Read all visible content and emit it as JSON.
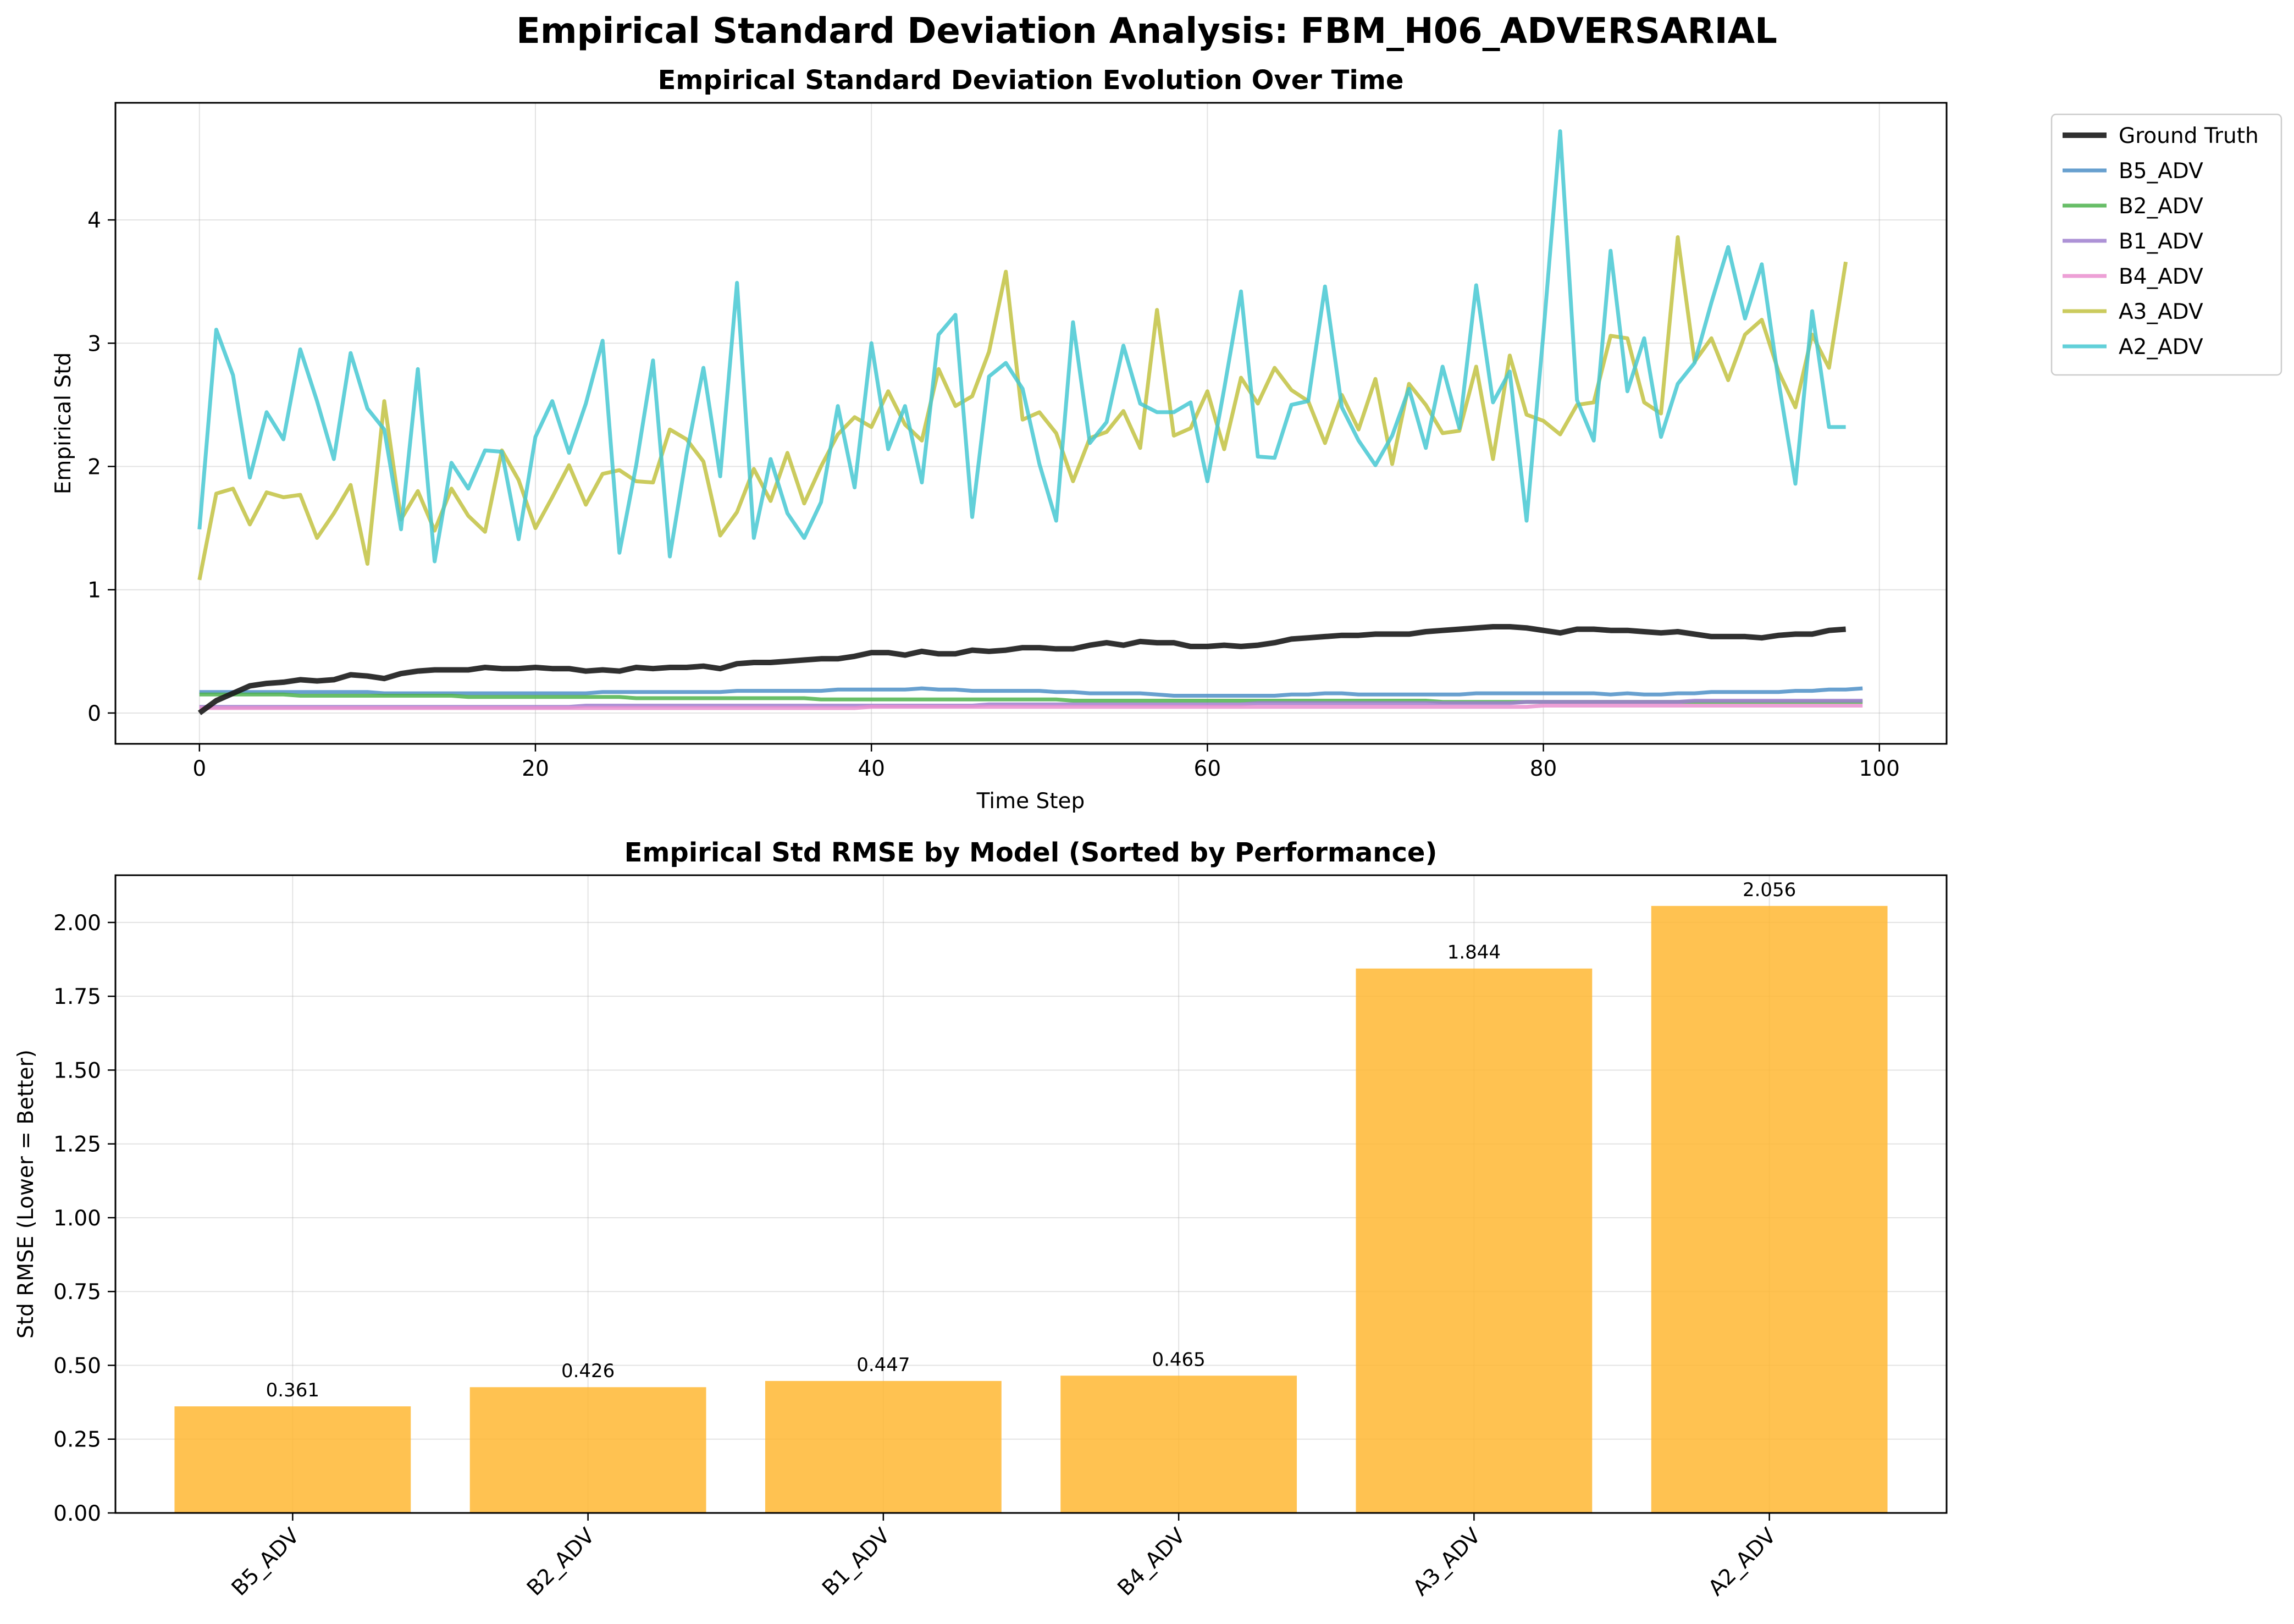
{
  "suptitle": "Empirical Standard Deviation Analysis: FBM_H06_ADVERSARIAL",
  "chart_data": [
    {
      "type": "line",
      "title": "Empirical Standard Deviation Evolution Over Time",
      "xlabel": "Time Step",
      "ylabel": "Empirical Std",
      "xlim": [
        -5,
        104
      ],
      "ylim": [
        -0.25,
        4.95
      ],
      "xticks": [
        0,
        20,
        40,
        60,
        80,
        100
      ],
      "yticks": [
        0,
        1,
        2,
        3,
        4
      ],
      "grid": true,
      "legend_position": "outside-right-top",
      "series": [
        {
          "name": "Ground Truth",
          "color": "#1a1a1a",
          "values": [
            0.0,
            0.1,
            0.16,
            0.22,
            0.24,
            0.25,
            0.27,
            0.26,
            0.27,
            0.31,
            0.3,
            0.28,
            0.32,
            0.34,
            0.35,
            0.35,
            0.35,
            0.37,
            0.36,
            0.36,
            0.37,
            0.36,
            0.36,
            0.34,
            0.35,
            0.34,
            0.37,
            0.36,
            0.37,
            0.37,
            0.38,
            0.36,
            0.4,
            0.41,
            0.41,
            0.42,
            0.43,
            0.44,
            0.44,
            0.46,
            0.49,
            0.49,
            0.47,
            0.5,
            0.48,
            0.48,
            0.51,
            0.5,
            0.51,
            0.53,
            0.53,
            0.52,
            0.52,
            0.55,
            0.57,
            0.55,
            0.58,
            0.57,
            0.57,
            0.54,
            0.54,
            0.55,
            0.54,
            0.55,
            0.57,
            0.6,
            0.61,
            0.62,
            0.63,
            0.63,
            0.64,
            0.64,
            0.64,
            0.66,
            0.67,
            0.68,
            0.69,
            0.7,
            0.7,
            0.69,
            0.67,
            0.65,
            0.68,
            0.68,
            0.67,
            0.67,
            0.66,
            0.65,
            0.66,
            0.64,
            0.62,
            0.62,
            0.62,
            0.61,
            0.63,
            0.64,
            0.64,
            0.67,
            0.68
          ]
        },
        {
          "name": "B5_ADV",
          "color": "#4e8fc7",
          "values": [
            0.17,
            0.17,
            0.17,
            0.17,
            0.17,
            0.17,
            0.17,
            0.17,
            0.17,
            0.17,
            0.17,
            0.16,
            0.16,
            0.16,
            0.16,
            0.16,
            0.16,
            0.16,
            0.16,
            0.16,
            0.16,
            0.16,
            0.16,
            0.16,
            0.17,
            0.17,
            0.17,
            0.17,
            0.17,
            0.17,
            0.17,
            0.17,
            0.18,
            0.18,
            0.18,
            0.18,
            0.18,
            0.18,
            0.19,
            0.19,
            0.19,
            0.19,
            0.19,
            0.2,
            0.19,
            0.19,
            0.18,
            0.18,
            0.18,
            0.18,
            0.18,
            0.17,
            0.17,
            0.16,
            0.16,
            0.16,
            0.16,
            0.15,
            0.14,
            0.14,
            0.14,
            0.14,
            0.14,
            0.14,
            0.14,
            0.15,
            0.15,
            0.16,
            0.16,
            0.15,
            0.15,
            0.15,
            0.15,
            0.15,
            0.15,
            0.15,
            0.16,
            0.16,
            0.16,
            0.16,
            0.16,
            0.16,
            0.16,
            0.16,
            0.15,
            0.16,
            0.15,
            0.15,
            0.16,
            0.16,
            0.17,
            0.17,
            0.17,
            0.17,
            0.17,
            0.18,
            0.18,
            0.19,
            0.19,
            0.2
          ]
        },
        {
          "name": "B2_ADV",
          "color": "#4db34d",
          "values": [
            0.15,
            0.15,
            0.15,
            0.15,
            0.15,
            0.15,
            0.14,
            0.14,
            0.14,
            0.14,
            0.14,
            0.14,
            0.14,
            0.14,
            0.14,
            0.14,
            0.13,
            0.13,
            0.13,
            0.13,
            0.13,
            0.13,
            0.13,
            0.13,
            0.13,
            0.13,
            0.12,
            0.12,
            0.12,
            0.12,
            0.12,
            0.12,
            0.12,
            0.12,
            0.12,
            0.12,
            0.12,
            0.11,
            0.11,
            0.11,
            0.11,
            0.11,
            0.11,
            0.11,
            0.11,
            0.11,
            0.11,
            0.11,
            0.11,
            0.11,
            0.11,
            0.11,
            0.1,
            0.1,
            0.1,
            0.1,
            0.1,
            0.1,
            0.1,
            0.1,
            0.1,
            0.1,
            0.1,
            0.1,
            0.1,
            0.1,
            0.1,
            0.1,
            0.1,
            0.1,
            0.1,
            0.1,
            0.1,
            0.1,
            0.09,
            0.09,
            0.09,
            0.09,
            0.09,
            0.09,
            0.09,
            0.09,
            0.09,
            0.09,
            0.09,
            0.09,
            0.09,
            0.09,
            0.09,
            0.09,
            0.09,
            0.09,
            0.09,
            0.09,
            0.09,
            0.09,
            0.09,
            0.09,
            0.09,
            0.09
          ]
        },
        {
          "name": "B1_ADV",
          "color": "#9f7fcf",
          "values": [
            0.05,
            0.05,
            0.05,
            0.05,
            0.05,
            0.05,
            0.05,
            0.05,
            0.05,
            0.05,
            0.05,
            0.05,
            0.05,
            0.05,
            0.05,
            0.05,
            0.05,
            0.05,
            0.05,
            0.05,
            0.05,
            0.05,
            0.05,
            0.06,
            0.06,
            0.06,
            0.06,
            0.06,
            0.06,
            0.06,
            0.06,
            0.06,
            0.06,
            0.06,
            0.06,
            0.06,
            0.06,
            0.06,
            0.06,
            0.06,
            0.06,
            0.06,
            0.06,
            0.06,
            0.06,
            0.06,
            0.06,
            0.07,
            0.07,
            0.07,
            0.07,
            0.07,
            0.07,
            0.07,
            0.07,
            0.07,
            0.07,
            0.07,
            0.07,
            0.07,
            0.07,
            0.07,
            0.07,
            0.08,
            0.08,
            0.08,
            0.08,
            0.08,
            0.08,
            0.08,
            0.08,
            0.08,
            0.08,
            0.08,
            0.08,
            0.08,
            0.08,
            0.08,
            0.08,
            0.09,
            0.09,
            0.09,
            0.09,
            0.09,
            0.09,
            0.09,
            0.09,
            0.09,
            0.09,
            0.1,
            0.1,
            0.1,
            0.1,
            0.1,
            0.1,
            0.1,
            0.1,
            0.1,
            0.1,
            0.1
          ]
        },
        {
          "name": "B4_ADV",
          "color": "#ea8fcf",
          "values": [
            0.04,
            0.04,
            0.04,
            0.04,
            0.04,
            0.04,
            0.04,
            0.04,
            0.04,
            0.04,
            0.04,
            0.04,
            0.04,
            0.04,
            0.04,
            0.04,
            0.04,
            0.04,
            0.04,
            0.04,
            0.04,
            0.04,
            0.04,
            0.04,
            0.04,
            0.04,
            0.04,
            0.04,
            0.04,
            0.04,
            0.04,
            0.04,
            0.04,
            0.04,
            0.04,
            0.04,
            0.04,
            0.04,
            0.04,
            0.04,
            0.05,
            0.05,
            0.05,
            0.05,
            0.05,
            0.05,
            0.05,
            0.05,
            0.05,
            0.05,
            0.05,
            0.05,
            0.05,
            0.05,
            0.05,
            0.05,
            0.05,
            0.05,
            0.05,
            0.05,
            0.05,
            0.05,
            0.05,
            0.05,
            0.05,
            0.05,
            0.05,
            0.05,
            0.05,
            0.05,
            0.05,
            0.05,
            0.05,
            0.05,
            0.05,
            0.05,
            0.05,
            0.05,
            0.05,
            0.05,
            0.06,
            0.06,
            0.06,
            0.06,
            0.06,
            0.06,
            0.06,
            0.06,
            0.06,
            0.06,
            0.06,
            0.06,
            0.06,
            0.06,
            0.06,
            0.06,
            0.06,
            0.06,
            0.06,
            0.06
          ]
        },
        {
          "name": "A3_ADV",
          "color": "#c2c242",
          "values": [
            1.08,
            1.78,
            1.82,
            1.53,
            1.79,
            1.75,
            1.77,
            1.42,
            1.62,
            1.85,
            1.21,
            2.53,
            1.57,
            1.8,
            1.48,
            1.82,
            1.6,
            1.47,
            2.13,
            1.89,
            1.5,
            1.75,
            2.01,
            1.69,
            1.94,
            1.97,
            1.88,
            1.87,
            2.3,
            2.22,
            2.04,
            1.44,
            1.63,
            1.98,
            1.72,
            2.11,
            1.7,
            2.0,
            2.26,
            2.4,
            2.32,
            2.61,
            2.34,
            2.21,
            2.79,
            2.49,
            2.57,
            2.93,
            3.58,
            2.38,
            2.44,
            2.27,
            1.88,
            2.23,
            2.28,
            2.45,
            2.15,
            3.27,
            2.25,
            2.31,
            2.61,
            2.14,
            2.72,
            2.51,
            2.8,
            2.62,
            2.53,
            2.19,
            2.58,
            2.3,
            2.71,
            2.02,
            2.67,
            2.5,
            2.27,
            2.29,
            2.81,
            2.06,
            2.9,
            2.42,
            2.37,
            2.26,
            2.5,
            2.52,
            3.06,
            3.04,
            2.52,
            2.43,
            3.86,
            2.85,
            3.04,
            2.7,
            3.07,
            3.19,
            2.77,
            2.48,
            3.07,
            2.8,
            3.66
          ]
        },
        {
          "name": "A2_ADV",
          "color": "#46c8d2",
          "values": [
            1.49,
            3.11,
            2.74,
            1.91,
            2.44,
            2.22,
            2.95,
            2.53,
            2.06,
            2.92,
            2.47,
            2.3,
            1.49,
            2.79,
            1.23,
            2.03,
            1.82,
            2.13,
            2.12,
            1.41,
            2.24,
            2.53,
            2.11,
            2.51,
            3.02,
            1.3,
            2.01,
            2.86,
            1.27,
            2.1,
            2.8,
            1.92,
            3.49,
            1.42,
            2.06,
            1.62,
            1.42,
            1.71,
            2.49,
            1.83,
            3.0,
            2.14,
            2.49,
            1.87,
            3.07,
            3.23,
            1.59,
            2.73,
            2.84,
            2.63,
            2.02,
            1.56,
            3.17,
            2.19,
            2.36,
            2.98,
            2.51,
            2.44,
            2.44,
            2.52,
            1.88,
            2.63,
            3.42,
            2.08,
            2.07,
            2.5,
            2.53,
            3.46,
            2.48,
            2.21,
            2.01,
            2.25,
            2.63,
            2.15,
            2.81,
            2.31,
            3.47,
            2.52,
            2.77,
            1.56,
            3.08,
            4.72,
            2.54,
            2.21,
            3.75,
            2.61,
            3.04,
            2.24,
            2.67,
            2.84,
            3.33,
            3.78,
            3.2,
            3.64,
            2.69,
            1.86,
            3.26,
            2.32,
            2.32
          ]
        }
      ]
    },
    {
      "type": "bar",
      "title": "Empirical Std RMSE by Model (Sorted by Performance)",
      "xlabel": "",
      "ylabel": "Std RMSE (Lower = Better)",
      "ylim": [
        0,
        2.16
      ],
      "yticks": [
        0.0,
        0.25,
        0.5,
        0.75,
        1.0,
        1.25,
        1.5,
        1.75,
        2.0
      ],
      "ytick_labels": [
        "0.00",
        "0.25",
        "0.50",
        "0.75",
        "1.00",
        "1.25",
        "1.50",
        "1.75",
        "2.00"
      ],
      "grid": true,
      "bar_color": "#ffb733",
      "categories": [
        "B5_ADV",
        "B2_ADV",
        "B1_ADV",
        "B4_ADV",
        "A3_ADV",
        "A2_ADV"
      ],
      "values": [
        0.361,
        0.426,
        0.447,
        0.465,
        1.844,
        2.056
      ],
      "data_labels": [
        "0.361",
        "0.426",
        "0.447",
        "0.465",
        "1.844",
        "2.056"
      ]
    }
  ]
}
